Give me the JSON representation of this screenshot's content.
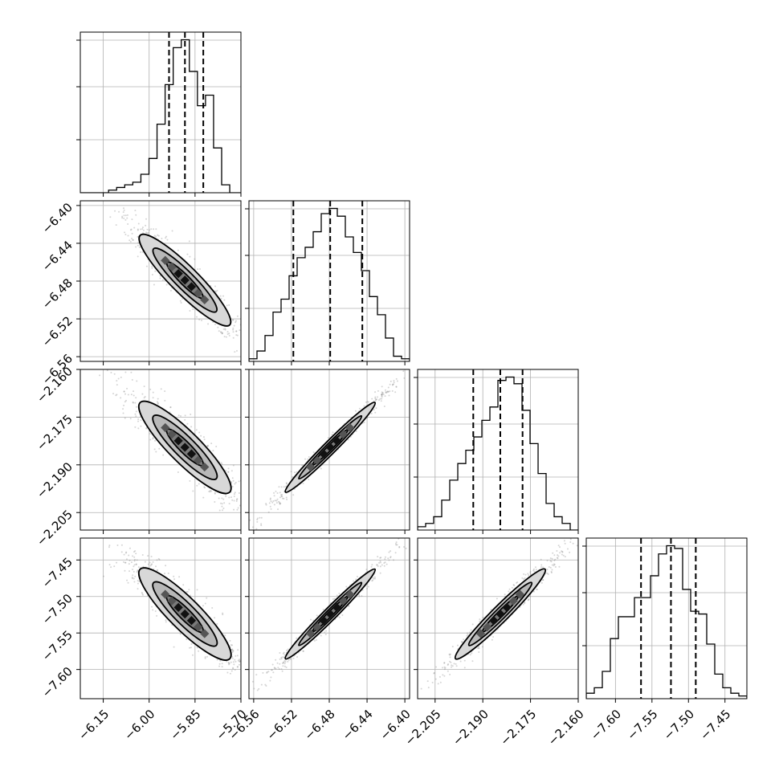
{
  "chart_data": {
    "type": "corner",
    "title": "",
    "grid": true,
    "parameters": [
      {
        "label": "",
        "range": [
          -6.225,
          -5.7
        ],
        "ticks": [
          -6.15,
          -6.0,
          -5.85,
          -5.7
        ],
        "tick_labels": [
          "−6.15",
          "−6.00",
          "−5.85",
          "−5.70"
        ],
        "quantiles": [
          -5.935,
          -5.883,
          -5.823
        ],
        "histogram": {
          "bin_edges": [
            -6.225,
            -6.2118,
            -6.1986,
            -6.1854,
            -6.1722,
            -6.159,
            -6.1458,
            -6.1326,
            -6.1194,
            -6.1062,
            -6.093,
            -6.0798,
            -6.0666,
            -6.0534,
            -6.0402,
            -6.027,
            -6.0138,
            -6.0006,
            -5.9874,
            -5.9742,
            -5.961,
            -5.9478,
            -5.9346,
            -5.9214,
            -5.9082,
            -5.895,
            -5.8818,
            -5.8686,
            -5.8554,
            -5.8422,
            -5.829,
            -5.8158,
            -5.8026,
            -5.7894,
            -5.7762,
            -5.763,
            -5.7498,
            -5.7366,
            -5.7234,
            -5.7102,
            -5.697
          ],
          "counts": [
            0,
            0,
            0,
            0,
            0,
            0,
            0,
            1,
            1,
            2,
            2,
            3,
            3,
            4,
            4,
            7,
            7,
            13,
            13,
            26,
            26,
            41,
            41,
            55,
            55,
            58,
            58,
            46,
            46,
            33,
            33,
            37,
            37,
            17,
            17,
            3,
            3,
            0,
            0,
            0
          ]
        }
      },
      {
        "label": "",
        "range": [
          -6.565,
          -6.395
        ],
        "ticks": [
          -6.56,
          -6.52,
          -6.48,
          -6.44,
          -6.4
        ],
        "tick_labels": [
          "−6.56",
          "−6.52",
          "−6.48",
          "−6.44",
          "−6.40"
        ],
        "quantiles": [
          -6.518,
          -6.479,
          -6.445
        ],
        "histogram": {
          "bin_edges": [
            -6.565,
            -6.5565,
            -6.548,
            -6.5395,
            -6.531,
            -6.5225,
            -6.514,
            -6.5055,
            -6.497,
            -6.4885,
            -6.48,
            -6.4715,
            -6.463,
            -6.4545,
            -6.446,
            -6.4375,
            -6.429,
            -6.4205,
            -6.412,
            -6.4035,
            -6.395
          ],
          "counts": [
            1,
            4,
            10,
            19,
            24,
            33,
            40,
            44,
            50,
            57,
            59,
            56,
            48,
            42,
            35,
            25,
            18,
            9,
            2,
            1
          ]
        }
      },
      {
        "label": "",
        "range": [
          -2.2105,
          -2.16
        ],
        "ticks": [
          -2.205,
          -2.19,
          -2.175,
          -2.16
        ],
        "tick_labels": [
          "−2.205",
          "−2.190",
          "−2.175",
          "−2.160"
        ],
        "quantiles": [
          -2.193,
          -2.1845,
          -2.1775
        ],
        "histogram": {
          "bin_edges": [
            -2.2105,
            -2.20797,
            -2.20545,
            -2.20292,
            -2.2004,
            -2.19787,
            -2.19535,
            -2.19282,
            -2.1903,
            -2.18777,
            -2.18525,
            -2.18272,
            -2.1802,
            -2.17767,
            -2.17515,
            -2.17262,
            -2.1701,
            -2.16757,
            -2.16505,
            -2.16252,
            -2.16
          ],
          "counts": [
            1,
            2,
            4,
            9,
            15,
            20,
            24,
            28,
            33,
            37,
            45,
            46,
            44,
            36,
            26,
            17,
            8,
            4,
            2,
            0
          ]
        }
      },
      {
        "label": "",
        "range": [
          -7.64,
          -7.42
        ],
        "ticks": [
          -7.6,
          -7.55,
          -7.5,
          -7.45
        ],
        "tick_labels": [
          "−7.60",
          "−7.55",
          "−7.50",
          "−7.45"
        ],
        "quantiles": [
          -7.565,
          -7.524,
          -7.49
        ],
        "histogram": {
          "bin_edges": [
            -7.64,
            -7.629,
            -7.618,
            -7.607,
            -7.596,
            -7.585,
            -7.574,
            -7.563,
            -7.552,
            -7.541,
            -7.53,
            -7.519,
            -7.508,
            -7.497,
            -7.486,
            -7.475,
            -7.464,
            -7.453,
            -7.442,
            -7.431,
            -7.42
          ],
          "counts": [
            2,
            4,
            10,
            22,
            30,
            30,
            37,
            37,
            45,
            53,
            56,
            55,
            40,
            32,
            31,
            20,
            9,
            4,
            2,
            1
          ]
        }
      }
    ],
    "joint_panels": [
      {
        "row": 1,
        "col": 0,
        "correlation": -0.95
      },
      {
        "row": 2,
        "col": 0,
        "correlation": -0.94
      },
      {
        "row": 2,
        "col": 1,
        "correlation": 0.99
      },
      {
        "row": 3,
        "col": 0,
        "correlation": -0.94
      },
      {
        "row": 3,
        "col": 1,
        "correlation": 0.99
      },
      {
        "row": 3,
        "col": 2,
        "correlation": 0.98
      }
    ]
  }
}
